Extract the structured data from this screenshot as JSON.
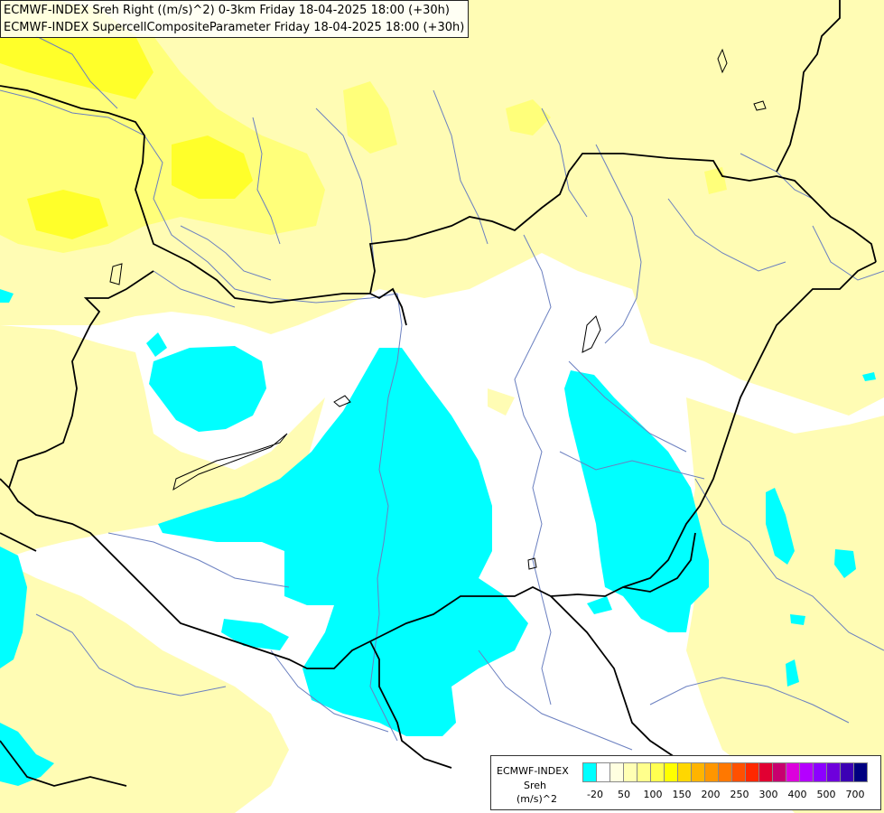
{
  "header": {
    "line1": "ECMWF-INDEX Sreh Right ((m/s)^2) 0-3km Friday 18-04-2025 18:00 (+30h)",
    "line2": "ECMWF-INDEX SupercellCompositeParameter Friday 18-04-2025 18:00 (+30h)"
  },
  "legend": {
    "title": "ECMWF-INDEX",
    "variable": "Sreh",
    "unit": "(m/s)^2",
    "colors": [
      "#00ffff",
      "#ffffff",
      "#ffffe0",
      "#ffffb4",
      "#ffff8c",
      "#ffff50",
      "#ffff00",
      "#ffd700",
      "#ffb400",
      "#ff9600",
      "#ff7800",
      "#ff5000",
      "#ff2800",
      "#e10032",
      "#c8006e",
      "#dc00dc",
      "#b400ff",
      "#8c00ff",
      "#6e00dc",
      "#3c00b4",
      "#000080"
    ],
    "ticks": [
      "-20",
      "50",
      "100",
      "150",
      "200",
      "250",
      "300",
      "400",
      "500",
      "700"
    ]
  },
  "map": {
    "colors": {
      "background": "#ffffff",
      "light_yellow": "#fffcb4",
      "yellow_mid": "#ffff78",
      "yellow_strong": "#ffff00",
      "cyan": "#00ffff",
      "border": "#000000",
      "river": "#6a7fc0"
    }
  }
}
